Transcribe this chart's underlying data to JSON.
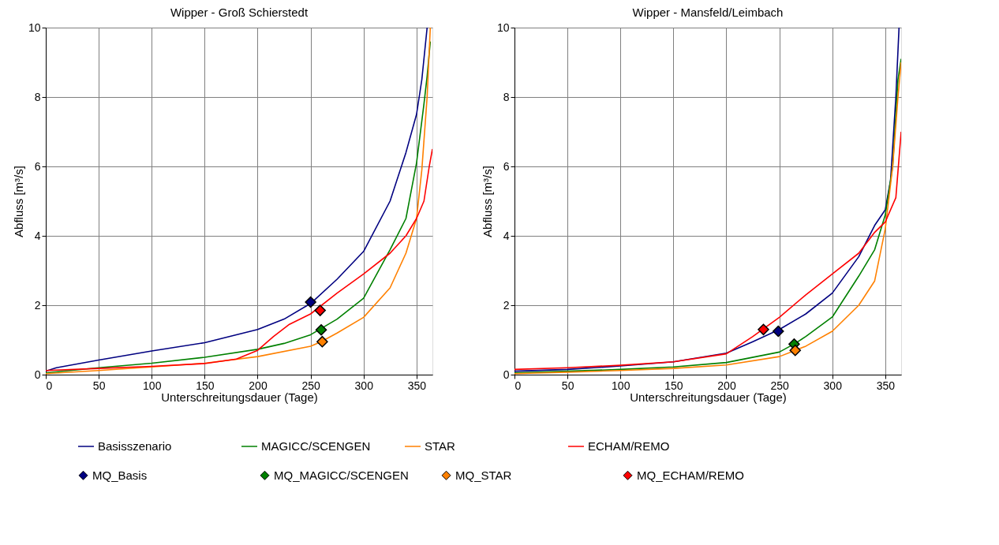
{
  "chart_data": [
    {
      "type": "line",
      "title": "Wipper - Groß Schierstedt",
      "xlabel": "Unterschreitungsdauer (Tage)",
      "ylabel": "Abfluss [m³/s]",
      "xlim": [
        0,
        365
      ],
      "ylim": [
        0,
        10
      ],
      "xticks": [
        0,
        50,
        100,
        150,
        200,
        250,
        300,
        350
      ],
      "yticks": [
        0,
        2,
        4,
        6,
        8,
        10
      ],
      "grid": true,
      "legend": "bottom",
      "line_style": "solid",
      "series": [
        {
          "name": "Basisszenario",
          "color": "#000080",
          "x": [
            0,
            10,
            50,
            100,
            150,
            200,
            225,
            250,
            275,
            300,
            325,
            340,
            350,
            355,
            360
          ],
          "values": [
            0.1,
            0.2,
            0.42,
            0.68,
            0.92,
            1.3,
            1.6,
            2.05,
            2.75,
            3.55,
            5.0,
            6.4,
            7.5,
            8.5,
            10
          ]
        },
        {
          "name": "MAGICC/SCENGEN",
          "color": "#008000",
          "x": [
            0,
            50,
            100,
            150,
            200,
            225,
            250,
            275,
            300,
            325,
            340,
            350,
            357,
            360,
            363
          ],
          "values": [
            0.05,
            0.2,
            0.33,
            0.5,
            0.73,
            0.9,
            1.15,
            1.6,
            2.2,
            3.6,
            4.5,
            6.1,
            7.8,
            8.6,
            9.6
          ]
        },
        {
          "name": "STAR",
          "color": "#ff8000",
          "x": [
            0,
            50,
            100,
            150,
            200,
            250,
            260,
            275,
            300,
            325,
            340,
            350,
            355,
            360,
            363
          ],
          "values": [
            0.03,
            0.12,
            0.22,
            0.33,
            0.52,
            0.82,
            0.95,
            1.2,
            1.65,
            2.5,
            3.5,
            4.5,
            5.9,
            8.0,
            10
          ]
        },
        {
          "name": "ECHAM/REMO",
          "color": "#ff0000",
          "x": [
            0,
            50,
            100,
            150,
            180,
            200,
            215,
            230,
            250,
            275,
            300,
            325,
            340,
            350,
            357,
            362,
            365
          ],
          "values": [
            0.12,
            0.18,
            0.24,
            0.32,
            0.45,
            0.7,
            1.1,
            1.45,
            1.75,
            2.35,
            2.9,
            3.5,
            4.0,
            4.5,
            5.0,
            6.0,
            6.5
          ]
        },
        {
          "name": "MQ_Basis",
          "type": "scatter",
          "marker": "diamond",
          "color": "#000080",
          "x": [
            250
          ],
          "values": [
            2.09
          ]
        },
        {
          "name": "MQ_MAGICC/SCENGEN",
          "type": "scatter",
          "marker": "diamond",
          "color": "#008000",
          "x": [
            260
          ],
          "values": [
            1.29
          ]
        },
        {
          "name": "MQ_STAR",
          "type": "scatter",
          "marker": "diamond",
          "color": "#ff8000",
          "x": [
            261
          ],
          "values": [
            0.95
          ]
        },
        {
          "name": "MQ_ECHAM/REMO",
          "type": "scatter",
          "marker": "diamond",
          "color": "#ff0000",
          "x": [
            259
          ],
          "values": [
            1.85
          ]
        }
      ]
    },
    {
      "type": "line",
      "title": "Wipper - Mansfeld/Leimbach",
      "xlabel": "Unterschreitungsdauer (Tage)",
      "ylabel": "Abfluss [m³/s]",
      "xlim": [
        0,
        365
      ],
      "ylim": [
        0,
        10
      ],
      "xticks": [
        0,
        50,
        100,
        150,
        200,
        250,
        300,
        350
      ],
      "yticks": [
        0,
        2,
        4,
        6,
        8,
        10
      ],
      "grid": true,
      "line_style": "solid",
      "series": [
        {
          "name": "Basisszenario",
          "color": "#000080",
          "x": [
            0,
            50,
            100,
            150,
            200,
            225,
            250,
            275,
            300,
            325,
            340,
            350,
            355,
            360,
            363
          ],
          "values": [
            0.1,
            0.15,
            0.25,
            0.37,
            0.62,
            0.95,
            1.3,
            1.75,
            2.35,
            3.4,
            4.3,
            4.75,
            5.6,
            8.0,
            10
          ]
        },
        {
          "name": "MAGICC/SCENGEN",
          "color": "#008000",
          "x": [
            0,
            50,
            100,
            150,
            200,
            250,
            265,
            275,
            300,
            325,
            340,
            350,
            357,
            362,
            365
          ],
          "values": [
            0.05,
            0.1,
            0.15,
            0.22,
            0.35,
            0.65,
            0.9,
            1.1,
            1.66,
            2.84,
            3.6,
            4.6,
            6.0,
            8.5,
            9.1
          ]
        },
        {
          "name": "STAR",
          "color": "#ff8000",
          "x": [
            0,
            50,
            100,
            150,
            200,
            250,
            265,
            275,
            300,
            325,
            340,
            350,
            357,
            362,
            365
          ],
          "values": [
            0.03,
            0.07,
            0.12,
            0.18,
            0.28,
            0.52,
            0.7,
            0.82,
            1.25,
            2.0,
            2.7,
            4.2,
            6.0,
            8.0,
            9.0
          ]
        },
        {
          "name": "ECHAM/REMO",
          "color": "#ff0000",
          "x": [
            0,
            50,
            100,
            150,
            200,
            225,
            250,
            275,
            300,
            325,
            340,
            350,
            360,
            365
          ],
          "values": [
            0.15,
            0.2,
            0.27,
            0.37,
            0.6,
            1.1,
            1.65,
            2.3,
            2.9,
            3.5,
            4.1,
            4.4,
            5.1,
            7.0
          ]
        },
        {
          "name": "MQ_Basis",
          "type": "scatter",
          "marker": "diamond",
          "color": "#000080",
          "x": [
            249
          ],
          "values": [
            1.25
          ]
        },
        {
          "name": "MQ_MAGICC/SCENGEN",
          "type": "scatter",
          "marker": "diamond",
          "color": "#008000",
          "x": [
            264
          ],
          "values": [
            0.88
          ]
        },
        {
          "name": "MQ_STAR",
          "type": "scatter",
          "marker": "diamond",
          "color": "#ff8000",
          "x": [
            265
          ],
          "values": [
            0.7
          ]
        },
        {
          "name": "MQ_ECHAM/REMO",
          "type": "scatter",
          "marker": "diamond",
          "color": "#ff0000",
          "x": [
            235
          ],
          "values": [
            1.3
          ]
        }
      ]
    }
  ]
}
